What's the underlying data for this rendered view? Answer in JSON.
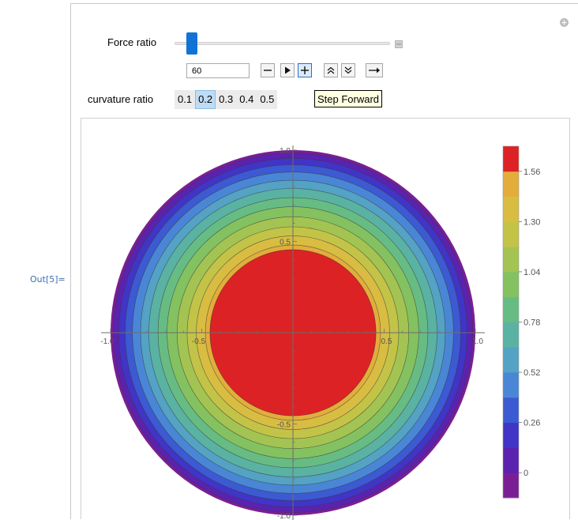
{
  "output_label": "Out[5]=",
  "controls": {
    "force_ratio": {
      "label": "Force ratio",
      "value": "60",
      "position_fraction": 0.06
    },
    "animator_buttons": [
      {
        "name": "step-back-button",
        "icon": "minus-icon"
      },
      {
        "name": "play-button",
        "icon": "play-icon"
      },
      {
        "name": "step-forward-button",
        "icon": "plus-icon"
      },
      {
        "name": "faster-button",
        "icon": "double-chevron-up-icon"
      },
      {
        "name": "slower-button",
        "icon": "double-chevron-down-icon"
      },
      {
        "name": "direction-button",
        "icon": "right-arrow-icon"
      }
    ],
    "curvature_ratio": {
      "label": "curvature ratio",
      "options": [
        "0.1",
        "0.2",
        "0.3",
        "0.4",
        "0.5"
      ],
      "selected": "0.2"
    },
    "tooltip": "Step Forward"
  },
  "chart_data": {
    "type": "contour",
    "description_free": true,
    "x_ticks": [
      "-1.0",
      "-0.5",
      "0.5",
      "1.0"
    ],
    "y_ticks": [
      "1.0",
      "0.5",
      "-0.5",
      "-1.0"
    ],
    "xlim": [
      -1.0,
      1.0
    ],
    "ylim": [
      -1.0,
      1.0
    ],
    "legend_ticks": [
      "1.56",
      "1.30",
      "1.04",
      "0.78",
      "0.52",
      "0.26",
      "0"
    ],
    "legend_range": [
      -0.13,
      1.69
    ],
    "contour_levels": [
      -0.13,
      0,
      0.13,
      0.26,
      0.39,
      0.52,
      0.65,
      0.78,
      0.91,
      1.04,
      1.17,
      1.3,
      1.43,
      1.56,
      1.69
    ],
    "band_colors": [
      "#7a1e96",
      "#5b22b0",
      "#4035c6",
      "#3c5ad2",
      "#4a86d6",
      "#54a2c4",
      "#5ab2a2",
      "#67bc84",
      "#84c160",
      "#a3c452",
      "#c3c348",
      "#d8bd42",
      "#e3ad3b",
      "#dc2224"
    ],
    "band_outer_radius": [
      1.0,
      0.985,
      0.955,
      0.92,
      0.88,
      0.835,
      0.79,
      0.74,
      0.69,
      0.635,
      0.58,
      0.53,
      0.48,
      0.455
    ],
    "center_region_radius": 0.455,
    "orange_ring_outer_radius": 0.53
  }
}
